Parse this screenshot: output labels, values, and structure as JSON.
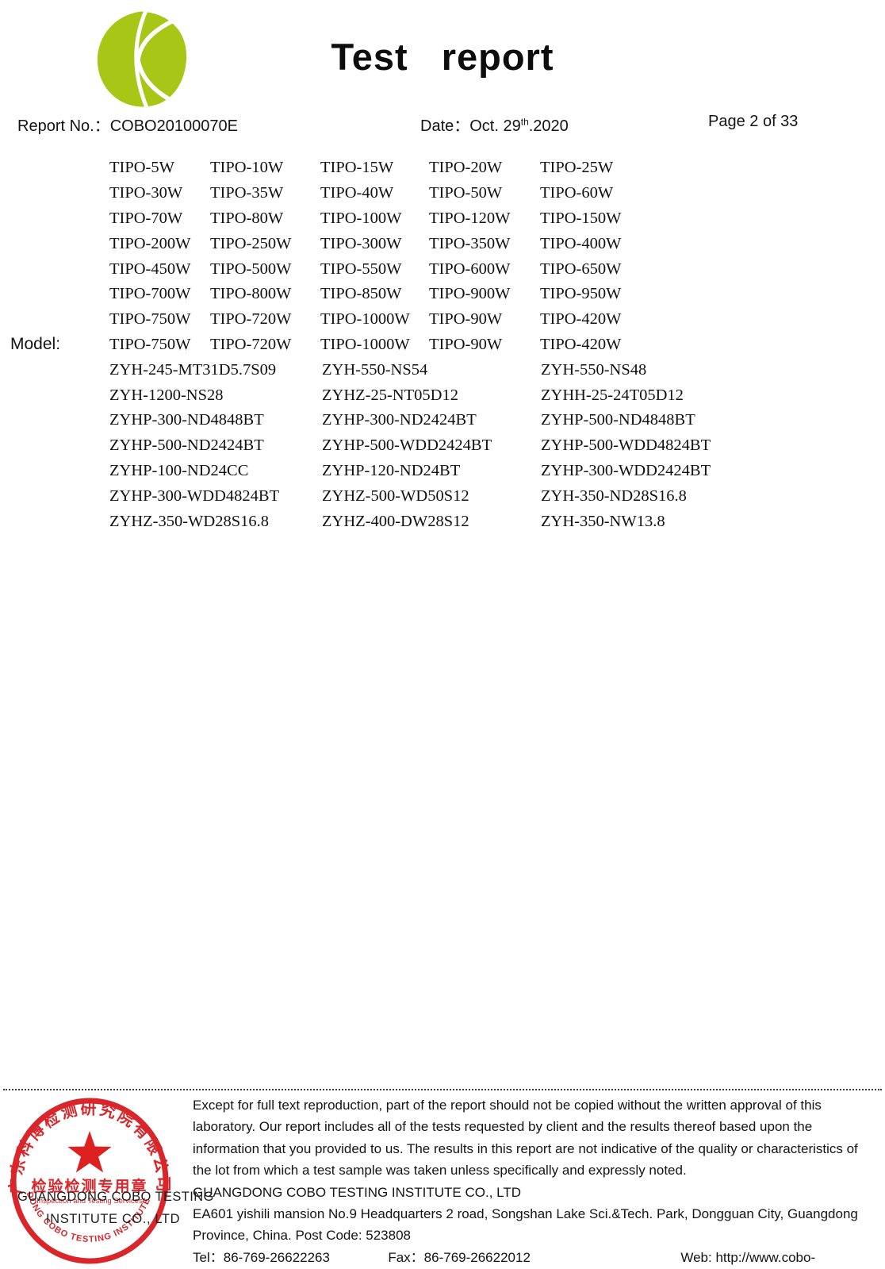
{
  "header": {
    "title": "Test report",
    "report_no_label": "Report No.：",
    "report_no": "COBO20100070E",
    "date_label": "Date：",
    "date_day": "Oct. 29",
    "date_sup": "th",
    "date_year": ".2020",
    "page": "Page 2 of 33"
  },
  "logo": {
    "name": "cobo-leaf-logo",
    "color": "#a8c616"
  },
  "model": {
    "label": "Model:",
    "rows": [
      {
        "cells": [
          "TIPO-5W",
          "TIPO-10W",
          "TIPO-15W",
          "TIPO-20W",
          "TIPO-25W"
        ]
      },
      {
        "cells": [
          "TIPO-30W",
          "TIPO-35W",
          "TIPO-40W",
          "TIPO-50W",
          "TIPO-60W"
        ]
      },
      {
        "cells": [
          "TIPO-70W",
          "TIPO-80W",
          "TIPO-100W",
          "TIPO-120W",
          "TIPO-150W"
        ]
      },
      {
        "cells": [
          "TIPO-200W",
          "TIPO-250W",
          "TIPO-300W",
          "TIPO-350W",
          "TIPO-400W"
        ]
      },
      {
        "cells": [
          "TIPO-450W",
          "TIPO-500W",
          "TIPO-550W",
          "TIPO-600W",
          "TIPO-650W"
        ]
      },
      {
        "cells": [
          "TIPO-700W",
          "TIPO-800W",
          "TIPO-850W",
          "TIPO-900W",
          "TIPO-950W"
        ]
      },
      {
        "cells": [
          "TIPO-750W",
          "TIPO-720W",
          "TIPO-1000W",
          "TIPO-90W",
          "TIPO-420W"
        ]
      },
      {
        "cells": [
          "TIPO-750W",
          "TIPO-720W",
          "TIPO-1000W",
          "TIPO-90W",
          "TIPO-420W"
        ]
      },
      {
        "cells": [
          "ZYH-245-MT31D5.7S09",
          "ZYH-550-NS54",
          "ZYH-550-NS48"
        ]
      },
      {
        "cells": [
          "ZYH-1200-NS28",
          "ZYHZ-25-NT05D12",
          "ZYHH-25-24T05D12"
        ]
      },
      {
        "cells": [
          "ZYHP-300-ND4848BT",
          "ZYHP-300-ND2424BT",
          "ZYHP-500-ND4848BT"
        ]
      },
      {
        "cells": [
          "ZYHP-500-ND2424BT",
          "ZYHP-500-WDD2424BT",
          "ZYHP-500-WDD4824BT"
        ]
      },
      {
        "cells": [
          "ZYHP-100-ND24CC",
          "ZYHP-120-ND24BT",
          "ZYHP-300-WDD2424BT"
        ]
      },
      {
        "cells": [
          "ZYHP-300-WDD4824BT",
          "ZYHZ-500-WD50S12",
          "ZYH-350-ND28S16.8"
        ]
      },
      {
        "cells": [
          "ZYHZ-350-WD28S16.8",
          "ZYHZ-400-DW28S12",
          "ZYH-350-NW13.8"
        ]
      }
    ]
  },
  "footer": {
    "disclaimer": "Except for full text reproduction, part of the report should not be copied without the written approval of this laboratory. Our report includes all of the tests requested by client and the results thereof based upon the information that you provided to us. The results in this report are not indicative of the quality or characteristics of the lot from which a test sample was taken unless specifically and expressly noted.",
    "company": "GUANGDONG COBO TESTING INSTITUTE CO., LTD",
    "address": "EA601 yishili mansion No.9 Headquarters 2 road, Songshan Lake Sci.&Tech. Park, Dongguan City, Guangdong Province, China. Post Code: 523808",
    "tel_label": "Tel：",
    "tel": "86-769-26622263",
    "fax_label": "Fax：",
    "fax": "86-769-26622012",
    "web_label": "Web: ",
    "web": "http://www.cobo-test.com"
  },
  "stamp": {
    "ring_color": "#d8262b",
    "top_arc_text": "广东科博检测研究院有限公司",
    "center_text": "检验检测专用章",
    "sub_text": "Inspection and Testing Services",
    "bottom_arc_text": "GUANGDONG COBO TESTING INSTITUTE CO.,LTD",
    "overlay_line1": "GUANGDONG COBO TESTING",
    "overlay_line2": "INSTITUTE CO., LTD"
  }
}
